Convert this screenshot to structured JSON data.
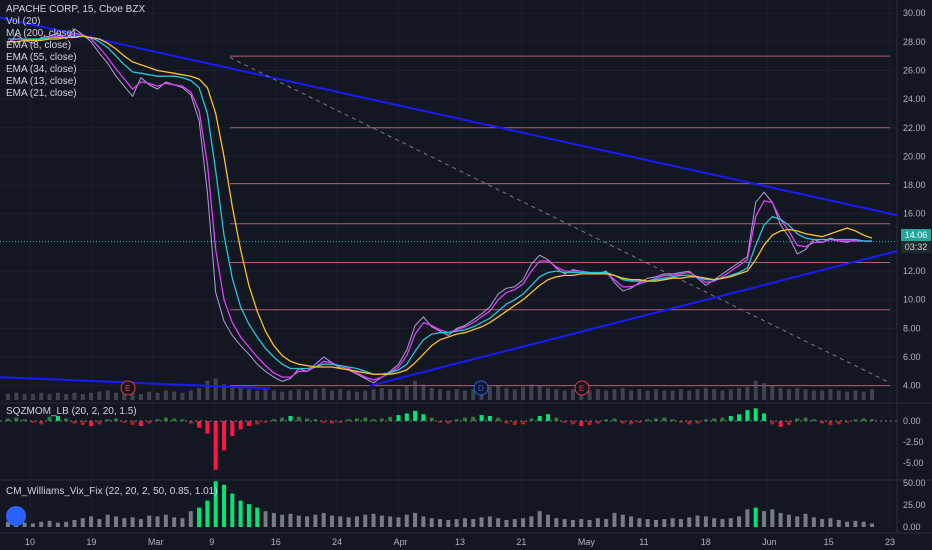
{
  "header": {
    "symbol_line": "APACHE CORP, 15, Cboe BZX",
    "indicators": [
      "Vol (20)",
      "MA (200, close)",
      "EMA (8, close)",
      "EMA (55, close)",
      "EMA (34, close)",
      "EMA (13, close)",
      "EMA (21, close)"
    ]
  },
  "last_price": "14.06",
  "countdown": "03:32",
  "event_markers": [
    "E",
    "D",
    "E"
  ],
  "sqzmom": {
    "label": "SQZMOM_LB (20, 2, 20, 1.5)",
    "ticks": [
      "0.00",
      "-2.50",
      "-5.00"
    ]
  },
  "williams": {
    "label": "CM_Williams_Vix_Fix (22, 20, 2, 50, 0.85, 1.01)",
    "ticks": [
      "50.00",
      "25.00",
      "0.00"
    ]
  },
  "colors": {
    "background": "#131722",
    "price": "#b39ddb",
    "ema_fast": "#e040fb",
    "ema_mid": "#26c6da",
    "ma": "#fbc02d",
    "trendline": "#1a1aff",
    "hline": "#b06070",
    "last_price": "#26a69a"
  },
  "chart_data": {
    "type": "line",
    "title": "APACHE CORP, 15, Cboe BZX",
    "x_ticks": [
      "10",
      "19",
      "Mar",
      "9",
      "16",
      "24",
      "Apr",
      "13",
      "21",
      "May",
      "11",
      "18",
      "Jun",
      "15",
      "23"
    ],
    "y_ticks": [
      "4.00",
      "6.00",
      "8.00",
      "10.00",
      "12.00",
      "14.00",
      "16.00",
      "18.00",
      "20.00",
      "22.00",
      "24.00",
      "26.00",
      "28.00",
      "30.00"
    ],
    "ylim": [
      3,
      30.5
    ],
    "series": [
      {
        "values": [
          27.8,
          28.5,
          28.1,
          27.9,
          28.3,
          28.4,
          28.6,
          28.2,
          28.9,
          28.5,
          28.0,
          27.2,
          26.5,
          25.6,
          24.9,
          24.2,
          25.5,
          25.0,
          24.7,
          25.2,
          25.0,
          24.8,
          24.3,
          22.5,
          17.5,
          10.5,
          8.5,
          7.5,
          6.8,
          6.2,
          5.5,
          5.0,
          4.6,
          4.3,
          4.5,
          5.2,
          5.0,
          5.5,
          6.0,
          5.6,
          5.2,
          5.1,
          4.8,
          4.5,
          4.2,
          4.6,
          5.0,
          5.5,
          6.5,
          8.2,
          8.8,
          8.1,
          7.8,
          7.5,
          8.0,
          8.2,
          8.6,
          9.0,
          9.5,
          10.4,
          10.8,
          10.9,
          11.4,
          12.5,
          13.1,
          12.8,
          12.2,
          11.8,
          12.1,
          12.0,
          11.9,
          11.8,
          12.0,
          11.2,
          10.6,
          10.8,
          11.2,
          11.5,
          11.6,
          11.8,
          11.8,
          11.9,
          12.0,
          11.5,
          11.0,
          11.4,
          11.8,
          12.2,
          12.6,
          13.0,
          16.8,
          17.5,
          16.8,
          15.2,
          14.4,
          13.2,
          13.5,
          14.2,
          14.0,
          14.3,
          14.1,
          14.0,
          14.2,
          14.1,
          14.06
        ]
      },
      {
        "values": [
          28.0,
          28.2,
          28.2,
          28.1,
          28.2,
          28.3,
          28.4,
          28.3,
          28.6,
          28.5,
          28.2,
          27.6,
          26.9,
          26.1,
          25.4,
          24.7,
          25.2,
          25.1,
          24.9,
          25.1,
          25.0,
          24.9,
          24.5,
          23.2,
          19.5,
          13.5,
          10.0,
          8.4,
          7.4,
          6.7,
          6.0,
          5.4,
          4.9,
          4.6,
          4.6,
          5.0,
          5.0,
          5.3,
          5.7,
          5.6,
          5.3,
          5.2,
          4.9,
          4.6,
          4.4,
          4.6,
          4.9,
          5.3,
          6.1,
          7.6,
          8.4,
          8.2,
          7.9,
          7.7,
          7.9,
          8.1,
          8.4,
          8.8,
          9.2,
          10.0,
          10.5,
          10.7,
          11.1,
          12.0,
          12.7,
          12.7,
          12.3,
          12.0,
          12.0,
          12.0,
          11.9,
          11.8,
          11.9,
          11.4,
          10.9,
          10.9,
          11.1,
          11.3,
          11.5,
          11.7,
          11.7,
          11.8,
          11.9,
          11.6,
          11.2,
          11.3,
          11.6,
          12.0,
          12.4,
          12.8,
          15.8,
          16.9,
          16.8,
          15.6,
          14.8,
          13.8,
          13.7,
          14.0,
          14.0,
          14.2,
          14.1,
          14.1,
          14.1,
          14.1,
          14.08
        ]
      },
      {
        "values": [
          28.2,
          28.2,
          28.2,
          28.2,
          28.2,
          28.3,
          28.3,
          28.3,
          28.4,
          28.4,
          28.3,
          28.0,
          27.6,
          27.0,
          26.4,
          25.9,
          25.8,
          25.7,
          25.6,
          25.6,
          25.6,
          25.5,
          25.3,
          24.8,
          23.0,
          19.0,
          14.5,
          11.5,
          9.5,
          8.3,
          7.4,
          6.6,
          6.0,
          5.5,
          5.2,
          5.2,
          5.2,
          5.3,
          5.5,
          5.5,
          5.4,
          5.3,
          5.2,
          5.0,
          4.8,
          4.8,
          4.9,
          5.1,
          5.5,
          6.4,
          7.2,
          7.6,
          7.7,
          7.7,
          7.8,
          7.9,
          8.1,
          8.4,
          8.7,
          9.2,
          9.7,
          10.0,
          10.4,
          11.0,
          11.6,
          11.9,
          12.0,
          11.9,
          11.9,
          11.9,
          11.9,
          11.9,
          11.9,
          11.7,
          11.4,
          11.3,
          11.3,
          11.3,
          11.4,
          11.5,
          11.6,
          11.7,
          11.7,
          11.6,
          11.4,
          11.4,
          11.5,
          11.7,
          11.9,
          12.2,
          13.8,
          15.2,
          15.8,
          15.6,
          15.2,
          14.6,
          14.3,
          14.2,
          14.2,
          14.2,
          14.2,
          14.2,
          14.2,
          14.1,
          14.1
        ]
      },
      {
        "values": [
          28.0,
          28.0,
          28.1,
          28.1,
          28.1,
          28.2,
          28.2,
          28.3,
          28.3,
          28.4,
          28.3,
          28.2,
          27.9,
          27.5,
          27.0,
          26.6,
          26.4,
          26.2,
          26.0,
          25.9,
          25.8,
          25.7,
          25.6,
          25.4,
          24.8,
          23.0,
          20.0,
          16.5,
          13.5,
          11.0,
          9.2,
          7.8,
          6.8,
          6.1,
          5.7,
          5.5,
          5.4,
          5.3,
          5.3,
          5.3,
          5.2,
          5.1,
          5.0,
          4.9,
          4.8,
          4.8,
          4.8,
          4.9,
          5.1,
          5.6,
          6.2,
          6.8,
          7.2,
          7.4,
          7.6,
          7.7,
          7.9,
          8.1,
          8.4,
          8.8,
          9.2,
          9.6,
          10.0,
          10.5,
          11.0,
          11.4,
          11.6,
          11.7,
          11.7,
          11.8,
          11.8,
          11.8,
          11.8,
          11.7,
          11.5,
          11.4,
          11.4,
          11.3,
          11.3,
          11.4,
          11.5,
          11.5,
          11.6,
          11.6,
          11.5,
          11.4,
          11.5,
          11.6,
          11.8,
          12.0,
          12.8,
          13.8,
          14.5,
          14.8,
          14.9,
          14.8,
          14.6,
          14.5,
          14.4,
          14.6,
          14.8,
          15.0,
          14.8,
          14.5,
          14.3
        ]
      }
    ],
    "volume": [
      0.5,
      0.6,
      0.5,
      0.5,
      0.6,
      0.5,
      0.6,
      0.5,
      0.6,
      0.5,
      0.6,
      0.7,
      0.8,
      0.6,
      0.7,
      0.6,
      0.5,
      0.7,
      0.6,
      0.8,
      0.7,
      0.6,
      0.8,
      1.0,
      1.6,
      1.8,
      1.3,
      1.1,
      1.0,
      0.9,
      0.8,
      0.9,
      0.8,
      0.7,
      0.8,
      0.9,
      0.8,
      0.9,
      1.0,
      0.8,
      0.9,
      0.8,
      0.7,
      0.8,
      0.9,
      1.0,
      0.9,
      0.9,
      1.2,
      1.6,
      1.3,
      1.0,
      0.9,
      0.8,
      0.9,
      0.8,
      0.9,
      1.0,
      1.1,
      1.2,
      1.0,
      0.9,
      1.1,
      1.3,
      1.2,
      1.0,
      0.9,
      0.8,
      0.9,
      0.8,
      0.8,
      0.9,
      0.8,
      0.9,
      1.0,
      0.8,
      0.9,
      0.8,
      0.9,
      0.8,
      0.8,
      0.9,
      0.8,
      0.9,
      1.0,
      0.9,
      0.8,
      0.9,
      1.0,
      1.1,
      1.6,
      1.4,
      1.2,
      1.0,
      0.9,
      1.0,
      0.9,
      0.8,
      0.8,
      0.9,
      0.8,
      0.7,
      0.8,
      0.7,
      0.9
    ],
    "sqzmom_values": [
      0.3,
      0.4,
      0.2,
      -0.2,
      -0.4,
      0.5,
      0.6,
      0.3,
      -0.3,
      -0.5,
      -0.6,
      -0.4,
      0.2,
      0.3,
      -0.2,
      -0.5,
      -0.6,
      -0.3,
      0.2,
      0.4,
      0.3,
      0.2,
      -0.3,
      -0.8,
      -1.5,
      -5.8,
      -3.5,
      -1.8,
      -1.0,
      -0.6,
      -0.4,
      -0.2,
      0.2,
      0.4,
      0.6,
      0.5,
      0.3,
      0.2,
      -0.2,
      -0.3,
      -0.2,
      0.2,
      0.3,
      0.4,
      0.2,
      0.3,
      0.5,
      0.7,
      0.9,
      1.2,
      0.8,
      0.4,
      -0.2,
      -0.3,
      0.2,
      0.4,
      0.5,
      0.7,
      0.6,
      0.4,
      -0.3,
      -0.5,
      -0.4,
      0.3,
      0.6,
      0.8,
      0.4,
      -0.2,
      -0.4,
      -0.6,
      -0.5,
      -0.3,
      0.2,
      0.3,
      -0.3,
      -0.4,
      -0.2,
      0.2,
      0.3,
      0.4,
      0.2,
      -0.2,
      -0.4,
      -0.3,
      0.2,
      0.3,
      0.4,
      0.6,
      0.8,
      1.3,
      1.5,
      0.9,
      -0.4,
      -0.7,
      -0.5,
      0.3,
      0.4,
      0.2,
      -0.3,
      -0.5,
      -0.4,
      -0.2,
      0.2,
      0.3,
      0.2
    ],
    "williams_values": [
      6,
      8,
      5,
      4,
      6,
      7,
      5,
      6,
      8,
      10,
      12,
      9,
      14,
      12,
      10,
      11,
      9,
      13,
      12,
      14,
      11,
      10,
      18,
      22,
      30,
      52,
      48,
      38,
      30,
      26,
      22,
      18,
      16,
      14,
      15,
      13,
      12,
      14,
      16,
      13,
      12,
      11,
      12,
      14,
      15,
      13,
      12,
      11,
      14,
      16,
      12,
      10,
      9,
      8,
      9,
      10,
      9,
      11,
      12,
      10,
      8,
      9,
      10,
      12,
      18,
      14,
      10,
      9,
      8,
      9,
      8,
      10,
      9,
      16,
      14,
      12,
      10,
      9,
      8,
      9,
      10,
      9,
      11,
      13,
      12,
      10,
      9,
      10,
      12,
      20,
      22,
      18,
      20,
      16,
      14,
      12,
      15,
      11,
      9,
      10,
      8,
      6,
      7,
      6,
      4
    ]
  }
}
